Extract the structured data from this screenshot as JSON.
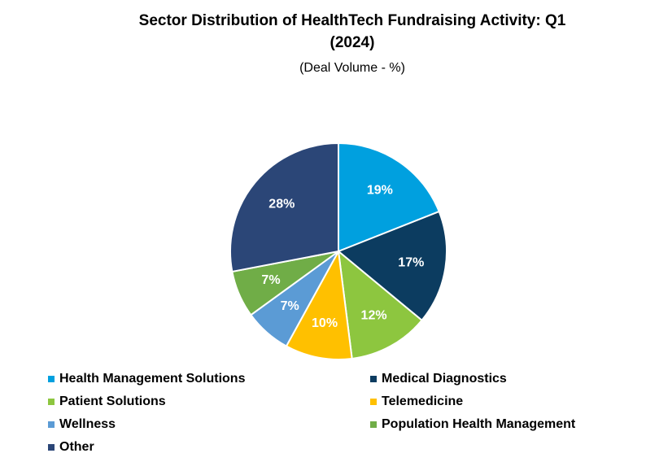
{
  "chart_data": {
    "type": "pie",
    "title": "Sector Distribution of HealthTech Fundraising Activity: Q1 (2024)",
    "subtitle": "(Deal Volume - %)",
    "categories": [
      "Health Management Solutions",
      "Medical Diagnostics",
      "Patient Solutions",
      "Telemedicine",
      "Wellness",
      "Population Health Management",
      "Other"
    ],
    "values": [
      19,
      17,
      12,
      10,
      7,
      7,
      28
    ],
    "value_labels": [
      "19%",
      "17%",
      "12%",
      "10%",
      "7%",
      "7%",
      "28%"
    ],
    "colors": [
      "#00a0df",
      "#0c3c60",
      "#8dc63f",
      "#ffc000",
      "#5b9bd5",
      "#70ad47",
      "#2b4677"
    ],
    "legend": "bottom"
  }
}
